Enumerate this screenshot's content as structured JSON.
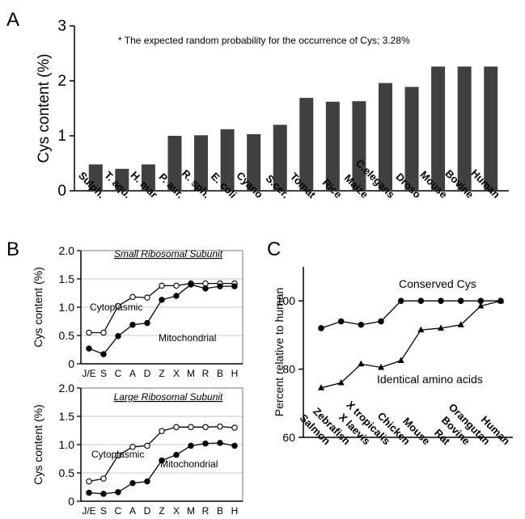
{
  "panel_letters": [
    "A",
    "B",
    "C"
  ],
  "chart_data": [
    {
      "id": "A",
      "type": "bar",
      "ylabel": "Cys content (%)",
      "ylim": [
        0,
        3
      ],
      "yticks": [
        0,
        1,
        2,
        3
      ],
      "annotation": "* The expected random probability for the occurrence of Cys; 3.28%",
      "bar_color": "#404040",
      "categories": [
        "Sulph.",
        "T. aqu.",
        "H. mar",
        "P. aur.",
        "R. sph.",
        "E. coli",
        "Cyano",
        "S.cer.",
        "Tomat",
        "Rice",
        "Maize",
        "C.elegans",
        "Droso",
        "Mouse",
        "Bovine",
        "Human"
      ],
      "values": [
        0.48,
        0.4,
        0.48,
        1.0,
        1.01,
        1.12,
        1.03,
        1.2,
        1.69,
        1.62,
        1.63,
        1.96,
        1.89,
        2.26,
        2.26,
        2.26
      ]
    },
    {
      "id": "B-top",
      "type": "line",
      "title": "Small Ribosomal Subunit",
      "ylabel": "Cys content (%)",
      "ylim": [
        0,
        2
      ],
      "yticks": [
        "0",
        "0.5",
        "1.0",
        "1.5",
        "2.0"
      ],
      "grid": true,
      "categories": [
        "J/E",
        "S",
        "C",
        "A",
        "D",
        "Z",
        "X",
        "M",
        "R",
        "B",
        "H"
      ],
      "series": [
        {
          "name": "Cytoplasmic",
          "marker": "open-circle",
          "values": [
            0.55,
            0.55,
            1.02,
            1.18,
            1.17,
            1.38,
            1.38,
            1.42,
            1.42,
            1.42,
            1.42
          ]
        },
        {
          "name": "Mitochondrial",
          "marker": "filled-circle",
          "values": [
            0.27,
            0.17,
            0.49,
            0.69,
            0.72,
            1.13,
            1.2,
            1.4,
            1.33,
            1.37,
            1.37
          ]
        }
      ]
    },
    {
      "id": "B-bottom",
      "type": "line",
      "title": "Large Ribosomal Subunit",
      "ylabel": "Cys content (%)",
      "ylim": [
        0,
        2
      ],
      "yticks": [
        "0",
        "0.5",
        "1.0",
        "1.5",
        "2.0"
      ],
      "grid": true,
      "categories": [
        "J/E",
        "S",
        "C",
        "A",
        "D",
        "Z",
        "X",
        "M",
        "R",
        "B",
        "H"
      ],
      "series": [
        {
          "name": "Cytoplasmic",
          "marker": "open-circle",
          "values": [
            0.35,
            0.4,
            0.81,
            0.96,
            0.98,
            1.24,
            1.31,
            1.31,
            1.31,
            1.32,
            1.3
          ]
        },
        {
          "name": "Mitochondrial",
          "marker": "filled-circle",
          "values": [
            0.15,
            0.13,
            0.16,
            0.32,
            0.35,
            0.72,
            0.82,
            0.98,
            1.02,
            1.03,
            0.98
          ]
        }
      ]
    },
    {
      "id": "C",
      "type": "line",
      "ylabel": "Percent relative to human",
      "ylim": [
        60,
        110
      ],
      "yticks": [
        60,
        80,
        100
      ],
      "categories": [
        "Salmon",
        "Zebrafish",
        "X laevis",
        "X tropicalis",
        "Chicken",
        "Mouse",
        "Rat",
        "Bovine",
        "Orangutan",
        "Human"
      ],
      "series": [
        {
          "name": "Conserved Cys",
          "marker": "filled-circle",
          "values": [
            92,
            94,
            93,
            94,
            100,
            100,
            100,
            100,
            100,
            100
          ]
        },
        {
          "name": "Identical amino acids",
          "marker": "filled-triangle",
          "values": [
            74.5,
            76,
            81.5,
            80.5,
            82.5,
            91.5,
            92,
            93,
            98.5,
            100
          ]
        }
      ]
    }
  ]
}
